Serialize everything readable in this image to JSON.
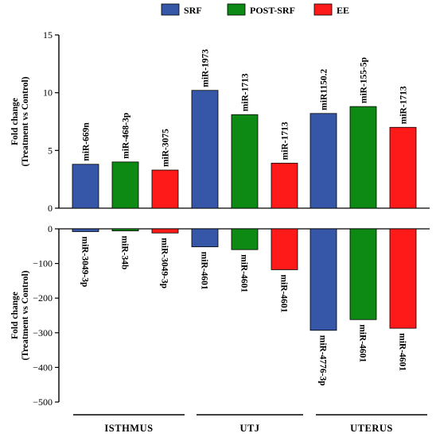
{
  "chart_data": {
    "type": "bar",
    "legend": {
      "placement": "top",
      "entries": [
        {
          "name": "SRF",
          "color": "#3656a8"
        },
        {
          "name": "POST-SRF",
          "color": "#0c8a14"
        },
        {
          "name": "EE",
          "color": "#ff1a1a"
        }
      ]
    },
    "groups": [
      "ISTHMUS",
      "UTJ",
      "UTERUS"
    ],
    "panels": [
      {
        "id": "up",
        "ylabel": "Fold change",
        "ylabel_sub": "(Treatment vs Control)",
        "ylim": [
          0,
          15
        ],
        "ticks": [
          0,
          5,
          10,
          15
        ],
        "tick_labels": [
          "0",
          "5",
          "10",
          "15"
        ],
        "series": [
          {
            "name": "SRF",
            "values": [
              3.8,
              10.2,
              8.2
            ],
            "labels": [
              "miR-669n",
              "miR-1973",
              "miR1150.2"
            ]
          },
          {
            "name": "POST-SRF",
            "values": [
              4.0,
              8.1,
              8.8
            ],
            "labels": [
              "miR-468-3p",
              "miR-1713",
              "miR-155-5p"
            ]
          },
          {
            "name": "EE",
            "values": [
              3.3,
              3.9,
              7.0
            ],
            "labels": [
              "miR-3075",
              "miR-1713",
              "miR-1713"
            ]
          }
        ]
      },
      {
        "id": "down",
        "ylabel": "Fold change",
        "ylabel_sub": "(Treatment vs Control)",
        "ylim": [
          -500,
          0
        ],
        "ticks": [
          0,
          -100,
          -200,
          -300,
          -400,
          -500
        ],
        "tick_labels": [
          "0",
          "−100",
          "−200",
          "−300",
          "−400",
          "−500"
        ],
        "series": [
          {
            "name": "SRF",
            "values": [
              -8,
              -52,
              -293
            ],
            "labels": [
              "miR-3049-3p",
              "miR-4601",
              "miR-4776-3p"
            ]
          },
          {
            "name": "POST-SRF",
            "values": [
              -6,
              -60,
              -262
            ],
            "labels": [
              "miR-34b",
              "miR-4601",
              "miR-4601"
            ]
          },
          {
            "name": "EE",
            "values": [
              -12,
              -118,
              -287
            ],
            "labels": [
              "miR-3049-3p",
              "miR-4601",
              "miR-4601"
            ]
          }
        ]
      }
    ],
    "grid": false
  }
}
